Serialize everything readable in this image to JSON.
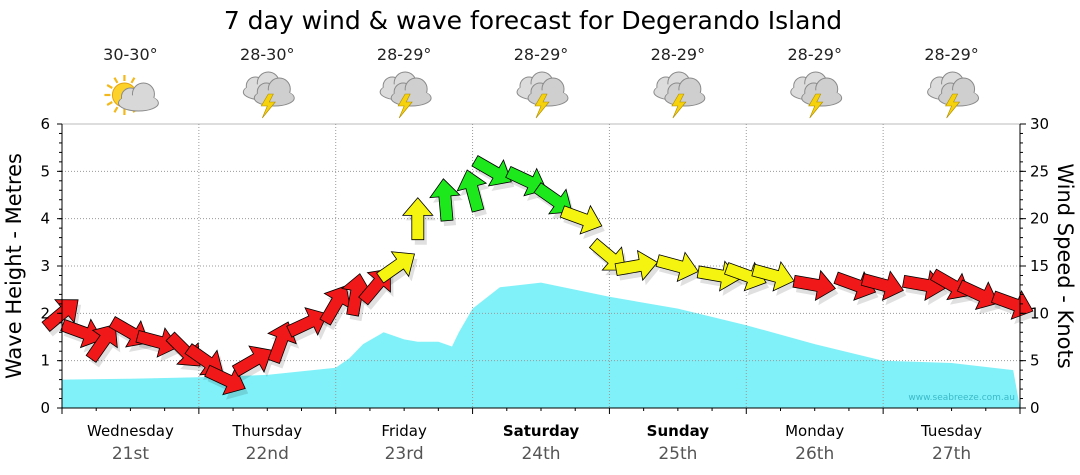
{
  "chart_data": {
    "type": "area",
    "title": "7 day wind & wave forecast for Degerando Island",
    "left_axis": {
      "label": "Wave Height - Metres",
      "range": [
        0,
        6
      ],
      "ticks": [
        "0",
        "1",
        "2",
        "3",
        "4",
        "5",
        "6"
      ]
    },
    "right_axis": {
      "label": "Wind Speed - Knots",
      "range": [
        0,
        30
      ],
      "ticks": [
        "0",
        "5",
        "10",
        "15",
        "20",
        "25",
        "30"
      ]
    },
    "days": [
      {
        "name": "Wednesday",
        "date": "21st",
        "temp": "30-30°",
        "icon": "sun-cloud-icon",
        "bold": false
      },
      {
        "name": "Thursday",
        "date": "22nd",
        "temp": "28-30°",
        "icon": "storm-icon",
        "bold": false
      },
      {
        "name": "Friday",
        "date": "23rd",
        "temp": "28-29°",
        "icon": "storm-icon",
        "bold": false
      },
      {
        "name": "Saturday",
        "date": "24th",
        "temp": "28-29°",
        "icon": "storm-icon",
        "bold": true
      },
      {
        "name": "Sunday",
        "date": "25th",
        "temp": "28-29°",
        "icon": "storm-icon",
        "bold": true
      },
      {
        "name": "Monday",
        "date": "26th",
        "temp": "28-29°",
        "icon": "storm-icon",
        "bold": false
      },
      {
        "name": "Tuesday",
        "date": "27th",
        "temp": "28-29°",
        "icon": "storm-icon",
        "bold": false
      }
    ],
    "wave_height_series": {
      "name": "Wave height (m)",
      "color": "#80f1f8",
      "x_days": [
        0,
        0.5,
        1,
        1.5,
        2,
        2.1,
        2.2,
        2.35,
        2.5,
        2.6,
        2.75,
        2.85,
        2.9,
        3.0,
        3.2,
        3.5,
        4,
        4.5,
        5,
        5.5,
        6,
        6.5,
        6.95
      ],
      "values": [
        0.6,
        0.62,
        0.65,
        0.7,
        0.85,
        1.05,
        1.35,
        1.6,
        1.45,
        1.4,
        1.4,
        1.3,
        1.6,
        2.1,
        2.55,
        2.65,
        2.35,
        2.1,
        1.75,
        1.35,
        1.0,
        0.95,
        0.8
      ]
    },
    "wind_series": {
      "name": "Wind speed (knots)",
      "color_scale": [
        {
          "max_knots": 13,
          "color": "#f01818"
        },
        {
          "max_knots": 20,
          "color": "#f4f410"
        },
        {
          "max_knots": 30,
          "color": "#1ce81c"
        }
      ],
      "x_days": [
        0,
        0.15,
        0.3,
        0.5,
        0.7,
        0.9,
        1.05,
        1.2,
        1.4,
        1.6,
        1.8,
        2.0,
        2.15,
        2.3,
        2.45,
        2.6,
        2.8,
        3.0,
        3.15,
        3.4,
        3.6,
        3.8,
        4.0,
        4.2,
        4.5,
        4.8,
        5.0,
        5.2,
        5.5,
        5.8,
        6.0,
        6.3,
        6.5,
        6.7,
        6.95
      ],
      "values": [
        10,
        8,
        7,
        8,
        7,
        6,
        5,
        3,
        5,
        7,
        9,
        11,
        12,
        13,
        15,
        20,
        22,
        23,
        25,
        24,
        22,
        20,
        16,
        15,
        15,
        14,
        14,
        14,
        13,
        13,
        13,
        13,
        13,
        12,
        11
      ]
    },
    "watermark": "www.seabreeze.com.au"
  }
}
